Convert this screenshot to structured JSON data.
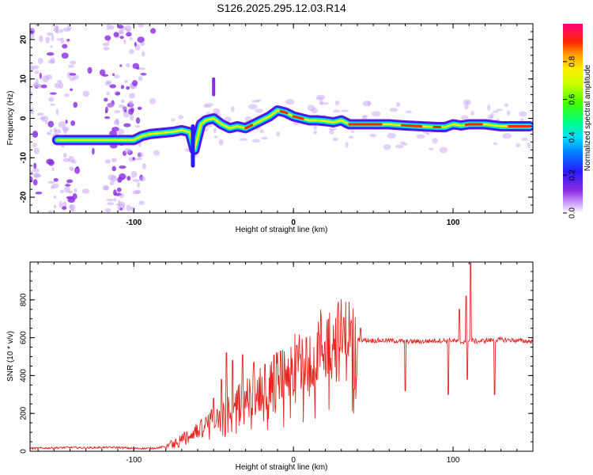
{
  "title": "S126.2025.295.12.03.R14",
  "colors": {
    "snr_line": "#e8241f",
    "frame": "#000000",
    "scatter_purple": "#8a2be2",
    "scatter_light": "#c9a6f5"
  },
  "chart_data": [
    {
      "type": "heatmap",
      "title": "S126.2025.295.12.03.R14",
      "xlabel": "Height of straight line (km)",
      "ylabel": "Frequency (Hz)",
      "xlim": [
        -165,
        150
      ],
      "ylim": [
        -24,
        24
      ],
      "xticks": [
        -100,
        0,
        100
      ],
      "xtick_labels": [
        "-100",
        "0",
        "100"
      ],
      "yticks": [
        -20,
        -10,
        0,
        10,
        20
      ],
      "ytick_labels": [
        "-20",
        "-10",
        "0",
        "10",
        "20"
      ],
      "colorbar": {
        "label": "Normalized spectral amplitude",
        "range": [
          0,
          1
        ],
        "ticks": [
          0.0,
          0.2,
          0.4,
          0.6,
          0.8
        ],
        "tick_labels": [
          "0.0",
          "0.2",
          "0.4",
          "0.6",
          "0.8"
        ]
      },
      "ridge": {
        "description_points_x": [
          -148,
          -140,
          -130,
          -120,
          -110,
          -100,
          -95,
          -90,
          -85,
          -80,
          -75,
          -70,
          -65,
          -62,
          -58,
          -55,
          -50,
          -45,
          -40,
          -35,
          -30,
          -25,
          -20,
          -15,
          -10,
          -5,
          0,
          5,
          10,
          15,
          20,
          25,
          30,
          35,
          40,
          50,
          60,
          70,
          80,
          90,
          95,
          100,
          105,
          110,
          120,
          130,
          140,
          148
        ],
        "frequency_hz": [
          -5.5,
          -5.5,
          -5.5,
          -5.5,
          -5.5,
          -5.5,
          -4.5,
          -4.0,
          -3.8,
          -3.6,
          -3.4,
          -3.0,
          -3.5,
          -8.0,
          -1.5,
          -0.5,
          0.0,
          -1.5,
          -2.5,
          -2.0,
          -2.5,
          -1.5,
          -0.5,
          0.5,
          2.0,
          1.5,
          0.5,
          0.0,
          -0.5,
          -0.5,
          -0.7,
          -1.0,
          -0.5,
          -1.5,
          -1.5,
          -1.5,
          -1.5,
          -1.8,
          -2.0,
          -2.2,
          -2.2,
          -1.5,
          -1.8,
          -1.5,
          -1.5,
          -2.0,
          -2.0,
          -2.0
        ]
      }
    },
    {
      "type": "line",
      "xlabel": "Height of straight line (km)",
      "ylabel": "SNR (10 * v/v)",
      "xlim": [
        -165,
        150
      ],
      "ylim": [
        0,
        1000
      ],
      "xticks": [
        -100,
        0,
        100
      ],
      "xtick_labels": [
        "-100",
        "0",
        "100"
      ],
      "yticks": [
        0,
        200,
        400,
        600,
        800
      ],
      "ytick_labels": [
        "0",
        "200",
        "400",
        "600",
        "800"
      ],
      "series": [
        {
          "name": "SNR",
          "x": [
            -165,
            -150,
            -140,
            -130,
            -120,
            -110,
            -100,
            -90,
            -85,
            -80,
            -75,
            -70,
            -65,
            -60,
            -55,
            -50,
            -45,
            -40,
            -35,
            -30,
            -25,
            -20,
            -15,
            -10,
            -5,
            0,
            5,
            10,
            15,
            20,
            25,
            30,
            35,
            40,
            50,
            60,
            70,
            80,
            90,
            100,
            105,
            110,
            115,
            120,
            130,
            140,
            150
          ],
          "values": [
            15,
            18,
            20,
            18,
            20,
            20,
            15,
            15,
            18,
            25,
            50,
            70,
            90,
            110,
            140,
            170,
            200,
            230,
            260,
            280,
            300,
            330,
            360,
            390,
            420,
            450,
            480,
            520,
            550,
            570,
            585,
            590,
            595,
            590,
            585,
            585,
            580,
            580,
            585,
            585,
            575,
            590,
            580,
            585,
            590,
            585,
            580
          ],
          "spikes": [
            {
              "x": -58,
              "value": 160
            },
            {
              "x": -50,
              "value": 280
            },
            {
              "x": -45,
              "value": 380
            },
            {
              "x": -42,
              "value": 520
            },
            {
              "x": -38,
              "value": 480
            },
            {
              "x": -32,
              "value": 510
            },
            {
              "x": -25,
              "value": 470
            },
            {
              "x": -18,
              "value": 460
            },
            {
              "x": -8,
              "value": 530
            },
            {
              "x": 2,
              "value": 560
            },
            {
              "x": 8,
              "value": 600
            },
            {
              "x": 38,
              "value": 330,
              "dip": true
            },
            {
              "x": 42,
              "value": 650
            },
            {
              "x": 70,
              "value": 320,
              "dip": true
            },
            {
              "x": 97,
              "value": 300,
              "dip": true
            },
            {
              "x": 104,
              "value": 750
            },
            {
              "x": 108,
              "value": 820
            },
            {
              "x": 111,
              "value": 1000
            },
            {
              "x": 109,
              "value": 380,
              "dip": true
            },
            {
              "x": 126,
              "value": 300,
              "dip": true
            }
          ]
        }
      ]
    }
  ]
}
